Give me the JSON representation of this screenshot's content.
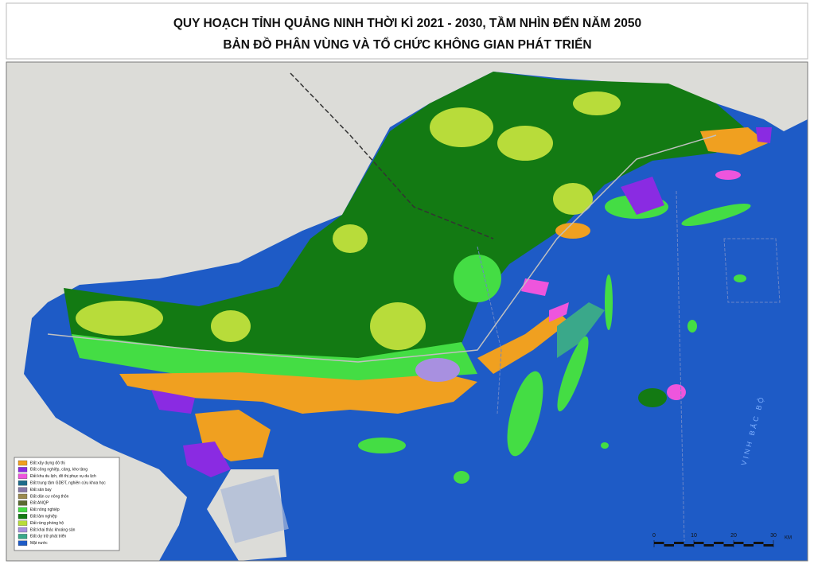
{
  "title_lines": [
    "QUY HOẠCH TỈNH QUẢNG NINH THỜI KÌ 2021 - 2030, TẦM NHÌN ĐẾN NĂM 2050",
    "BẢN ĐỒ PHÂN VÙNG VÀ TỔ CHỨC KHÔNG GIAN PHÁT TRIỂN"
  ],
  "legend": [
    {
      "label": "Đất xây dựng đô thị",
      "color": "#f0a020"
    },
    {
      "label": "Đất công nghiệp, cảng, kho tàng",
      "color": "#8a2be2"
    },
    {
      "label": "Đất khu du lịch, đô thị phục vụ du lịch",
      "color": "#ee55dd"
    },
    {
      "label": "Đất trung tâm GDĐT, nghiên cứu khoa học",
      "color": "#1d6b8a"
    },
    {
      "label": "Đất sân bay",
      "color": "#8878a8"
    },
    {
      "label": "Đất dân cư nông thôn",
      "color": "#9a8a50"
    },
    {
      "label": "Đất ANQP",
      "color": "#5a6a30"
    },
    {
      "label": "Đất nông nghiệp",
      "color": "#44dd44"
    },
    {
      "label": "Đất lâm nghiệp",
      "color": "#137a13"
    },
    {
      "label": "Đất rừng phòng hộ",
      "color": "#b8dc3a"
    },
    {
      "label": "Đất khai thác khoáng sản",
      "color": "#a890e0"
    },
    {
      "label": "Đất dự trữ phát triển",
      "color": "#3aa88a"
    },
    {
      "label": "Mặt nước",
      "color": "#1e5bc6"
    }
  ],
  "sea_label": "VỊNH BẮC BỘ",
  "scale": {
    "ticks": [
      0,
      10,
      20,
      30
    ],
    "unit": "KM"
  }
}
